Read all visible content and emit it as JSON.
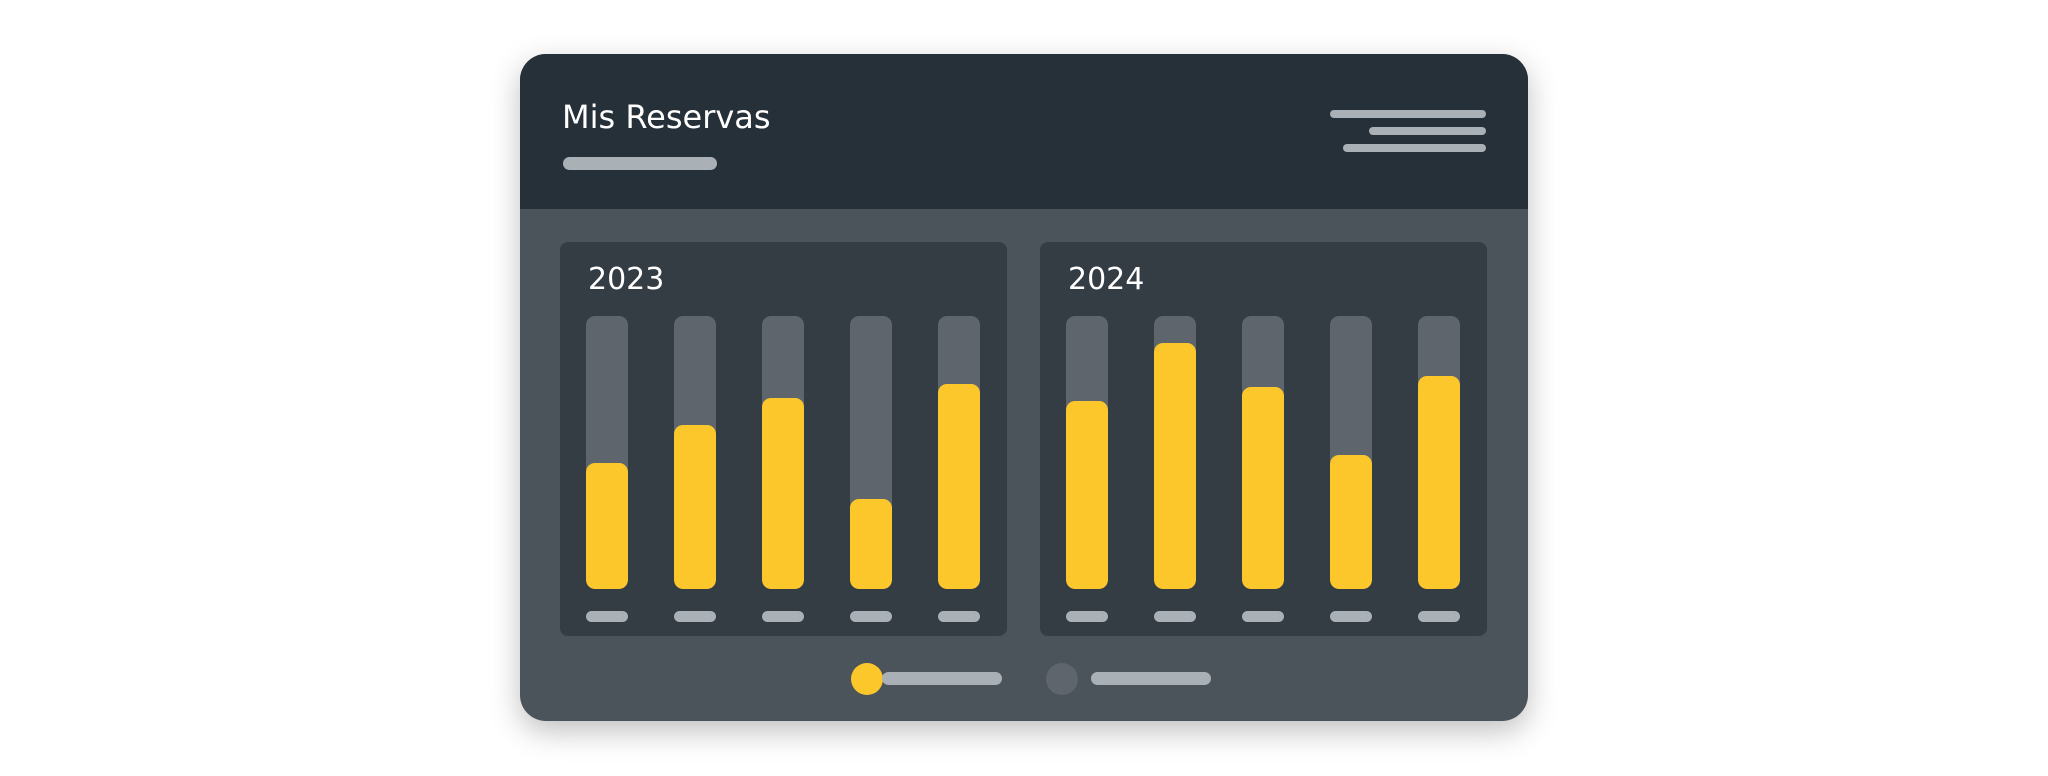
{
  "header": {
    "title": "Mis Reservas"
  },
  "colors": {
    "accent": "#fcc72a",
    "track": "#5e656d",
    "header": "#263038",
    "panel": "#343c44"
  },
  "chart_data": [
    {
      "type": "bar",
      "title": "2023",
      "categories": [
        "",
        "",
        "",
        "",
        ""
      ],
      "values": [
        0.46,
        0.6,
        0.7,
        0.33,
        0.75
      ],
      "ylim": [
        0,
        1
      ],
      "grid": false
    },
    {
      "type": "bar",
      "title": "2024",
      "categories": [
        "",
        "",
        "",
        "",
        ""
      ],
      "values": [
        0.69,
        0.9,
        0.74,
        0.49,
        0.78
      ],
      "ylim": [
        0,
        1
      ],
      "grid": false
    }
  ],
  "legend": {
    "placement": "bottom",
    "items": [
      {
        "color": "#fcc72a"
      },
      {
        "color": "#5e656d"
      }
    ]
  }
}
